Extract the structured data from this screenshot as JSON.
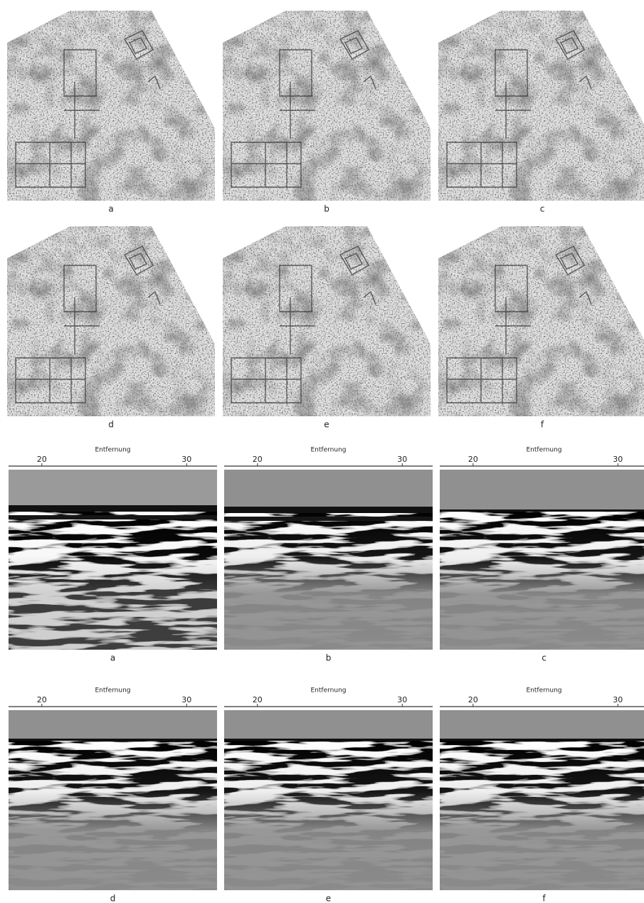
{
  "maps": {
    "labels": [
      "a",
      "b",
      "c",
      "d",
      "e",
      "f"
    ]
  },
  "radargrams": {
    "axis_label": "Entfernung",
    "xlim": [
      17.7,
      32.1
    ],
    "xticks": [
      20,
      30
    ],
    "labels": [
      "a",
      "b",
      "c",
      "d",
      "e",
      "f"
    ]
  }
}
